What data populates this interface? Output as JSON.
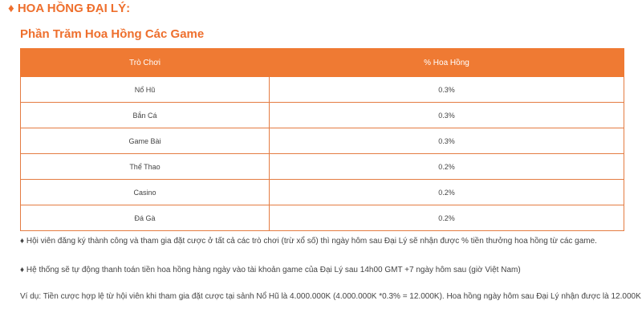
{
  "header": {
    "title": "♦ HOA HỒNG ĐẠI LÝ:",
    "subtitle": "Phần Trăm Hoa Hồng Các Game"
  },
  "table": {
    "columns": [
      "Trò Chơi",
      "% Hoa Hồng"
    ],
    "rows": [
      [
        "Nổ Hũ",
        "0.3%"
      ],
      [
        "Bắn Cá",
        "0.3%"
      ],
      [
        "Game Bài",
        "0.3%"
      ],
      [
        "Thể Thao",
        "0.2%"
      ],
      [
        "Casino",
        "0.2%"
      ],
      [
        "Đá Gà",
        "0.2%"
      ]
    ]
  },
  "paragraphs": [
    "♦ Hội viên đăng ký thành công và tham gia đặt cược ở tất cả các trò chơi (trừ xổ số) thì ngày hôm sau Đại Lý sẽ nhận được % tiền thưởng hoa hồng từ các game.",
    "♦ Hệ thống sẽ tự động thanh toán tiền hoa hồng hàng ngày vào tài khoản game của Đại Lý sau 14h00 GMT +7 ngày hôm sau (giờ Việt Nam)",
    "Ví dụ: Tiền cược hợp lệ từ hội viên khi tham gia đặt cược tại sảnh Nổ Hũ là 4.000.000K (4.000.000K *0.3% = 12.000K). Hoa hồng ngày hôm sau Đại Lý nhận được là 12.000K"
  ]
}
